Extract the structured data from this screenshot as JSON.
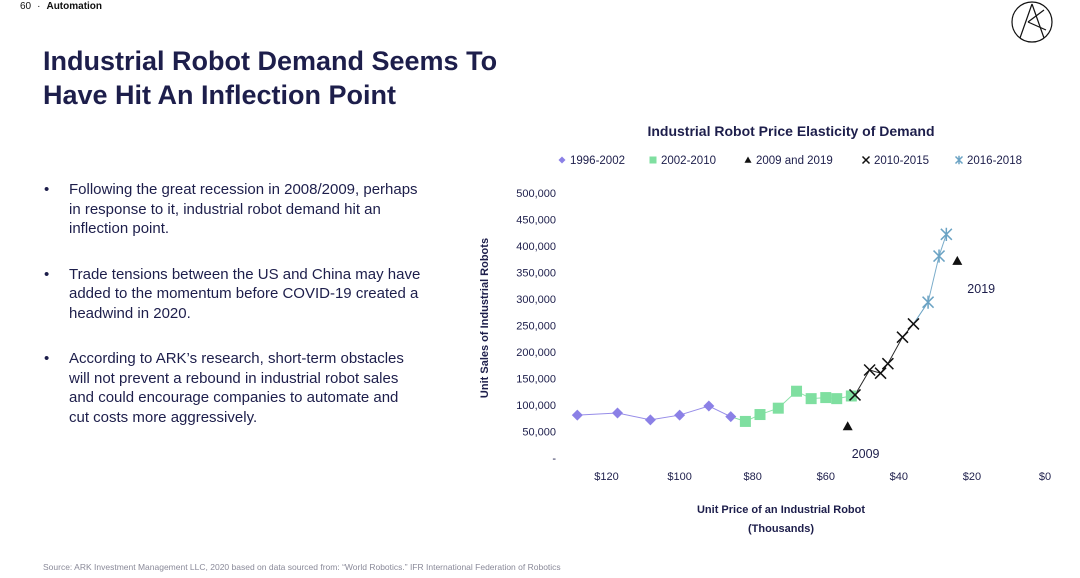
{
  "header": {
    "page_number": "60",
    "separator": "·",
    "section": "Automation"
  },
  "title": "Industrial Robot Demand Seems To Have Hit An Inflection Point",
  "bullets": [
    "Following the great recession in 2008/2009, perhaps in response to it, industrial robot demand hit an inflection point.",
    "Trade tensions between the US and China may have added to the momentum before COVID-19 created a headwind in 2020.",
    "According to ARK’s research, short-term obstacles will not prevent a rebound in industrial robot sales and could encourage companies to automate and cut costs more aggressively."
  ],
  "source": "Source: ARK Investment Management LLC, 2020 based on data sourced from: “World Robotics.” IFR International Federation of Robotics",
  "logo": {
    "icon": "ark-logo-icon"
  },
  "colors": {
    "navy": "#1d1e4b",
    "purple": "#8b80e6",
    "green": "#7fdfa0",
    "black": "#111111",
    "blue": "#6ba3c4"
  },
  "chart_data": {
    "type": "scatter",
    "title": "Industrial Robot Price Elasticity of Demand",
    "xlabel": "Unit Price of an Industrial Robot",
    "xlabel_sub": "(Thousands)",
    "ylabel": "Unit Sales of Industrial Robots",
    "x_reversed": true,
    "xlim": [
      0,
      130
    ],
    "ylim": [
      0,
      500000
    ],
    "x_ticks": [
      {
        "value": 120,
        "label": "$120"
      },
      {
        "value": 100,
        "label": "$100"
      },
      {
        "value": 80,
        "label": "$80"
      },
      {
        "value": 60,
        "label": "$60"
      },
      {
        "value": 40,
        "label": "$40"
      },
      {
        "value": 20,
        "label": "$20"
      },
      {
        "value": 0,
        "label": "$0"
      }
    ],
    "y_ticks": [
      {
        "value": 0,
        "label": "-"
      },
      {
        "value": 50000,
        "label": "50,000"
      },
      {
        "value": 100000,
        "label": "100,000"
      },
      {
        "value": 150000,
        "label": "150,000"
      },
      {
        "value": 200000,
        "label": "200,000"
      },
      {
        "value": 250000,
        "label": "250,000"
      },
      {
        "value": 300000,
        "label": "300,000"
      },
      {
        "value": 350000,
        "label": "350,000"
      },
      {
        "value": 400000,
        "label": "400,000"
      },
      {
        "value": 450000,
        "label": "450,000"
      },
      {
        "value": 500000,
        "label": "500,000"
      }
    ],
    "legend_position": "top",
    "series": [
      {
        "name": "1996-2002",
        "marker": "diamond",
        "color": "#8b80e6",
        "line": true,
        "points": [
          [
            128,
            81000
          ],
          [
            117,
            85000
          ],
          [
            108,
            72000
          ],
          [
            100,
            81000
          ],
          [
            92,
            98000
          ],
          [
            86,
            78000
          ]
        ]
      },
      {
        "name": "2002-2010",
        "marker": "square",
        "color": "#7fdfa0",
        "line": true,
        "points": [
          [
            82,
            69000
          ],
          [
            78,
            82000
          ],
          [
            73,
            94000
          ],
          [
            68,
            126000
          ],
          [
            64,
            112000
          ],
          [
            60,
            114000
          ],
          [
            57,
            112000
          ],
          [
            53,
            117000
          ]
        ]
      },
      {
        "name": "2009 and 2019",
        "marker": "triangle",
        "color": "#111111",
        "line": false,
        "points": [
          [
            54,
            60000
          ],
          [
            24,
            372000
          ]
        ],
        "labels": [
          "2009",
          "2019"
        ]
      },
      {
        "name": "2010-2015",
        "marker": "x",
        "color": "#111111",
        "line": true,
        "points": [
          [
            52,
            119000
          ],
          [
            48,
            166000
          ],
          [
            45,
            160000
          ],
          [
            43,
            178000
          ],
          [
            39,
            228000
          ],
          [
            36,
            253000
          ]
        ]
      },
      {
        "name": "2016-2018",
        "marker": "asterisk",
        "color": "#6ba3c4",
        "line": true,
        "points": [
          [
            32,
            294000
          ],
          [
            29,
            381000
          ],
          [
            27,
            422000
          ]
        ]
      }
    ]
  }
}
